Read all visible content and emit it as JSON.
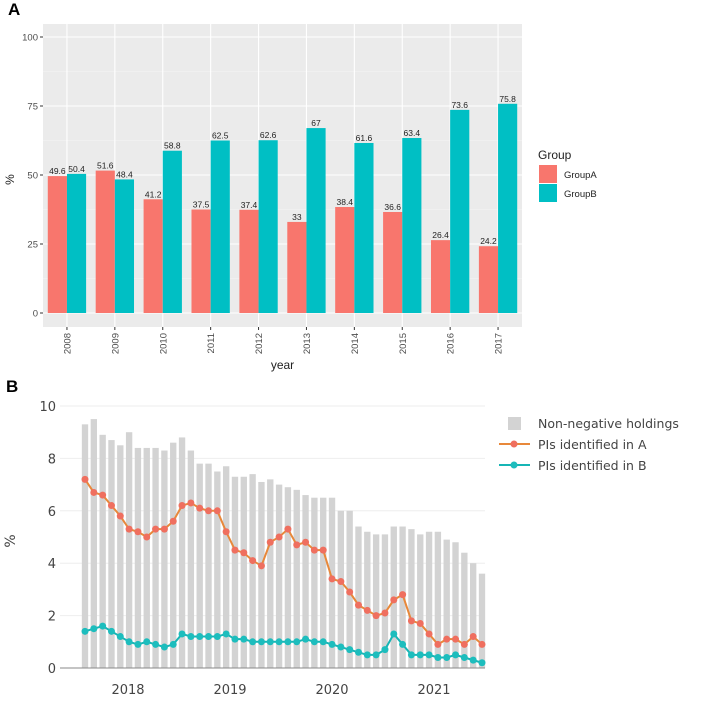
{
  "panels": {
    "a_label": "A",
    "b_label": "B"
  },
  "chart_data": [
    {
      "type": "bar",
      "panel": "A",
      "title": "",
      "xlabel": "year",
      "ylabel": "%",
      "ylim": [
        0,
        100
      ],
      "yticks": [
        0,
        25,
        50,
        75,
        100
      ],
      "ytick_labels": [
        "0",
        "25",
        "50",
        "75",
        "100"
      ],
      "grid": true,
      "categories": [
        "2008",
        "2009",
        "2010",
        "2011",
        "2012",
        "2013",
        "2014",
        "2015",
        "2016",
        "2017"
      ],
      "series": [
        {
          "name": "GroupA",
          "color": "#F8766D",
          "values": [
            49.6,
            51.6,
            41.2,
            37.5,
            37.4,
            33,
            38.4,
            36.6,
            26.4,
            24.2
          ],
          "labels": [
            "49.6",
            "51.6",
            "41.2",
            "37.5",
            "37.4",
            "33",
            "38.4",
            "36.6",
            "26.4",
            "24.2"
          ]
        },
        {
          "name": "GroupB",
          "color": "#00BFC4",
          "values": [
            50.4,
            48.4,
            58.8,
            62.5,
            62.6,
            67,
            61.6,
            63.4,
            73.6,
            75.8
          ],
          "labels": [
            "50.4",
            "48.4",
            "58.8",
            "62.5",
            "62.6",
            "67",
            "61.6",
            "63.4",
            "73.6",
            "75.8"
          ]
        }
      ],
      "legend": {
        "title": "Group",
        "position": "right",
        "items": [
          "GroupA",
          "GroupB"
        ]
      }
    },
    {
      "type": "bar+line",
      "panel": "B",
      "title": "",
      "xlabel": "",
      "ylabel": "%",
      "ylim": [
        0,
        10
      ],
      "yticks": [
        0,
        2,
        4,
        6,
        8,
        10
      ],
      "ytick_labels": [
        "0",
        "2",
        "4",
        "6",
        "8",
        "10"
      ],
      "xtick_labels": [
        "2018",
        "2019",
        "2020",
        "2021"
      ],
      "grid": true,
      "legend": {
        "position": "top-right",
        "items": [
          "Non-negative holdings",
          "PIs identified in A",
          "PIs identified in B"
        ]
      },
      "series": [
        {
          "name": "Non-negative holdings",
          "kind": "bar",
          "color": "#D3D3D3",
          "values": [
            9.3,
            9.5,
            8.9,
            8.7,
            8.5,
            9.0,
            8.4,
            8.4,
            8.4,
            8.3,
            8.6,
            8.8,
            8.3,
            7.8,
            7.8,
            7.5,
            7.7,
            7.3,
            7.3,
            7.4,
            7.1,
            7.2,
            7.0,
            6.9,
            6.8,
            6.6,
            6.5,
            6.5,
            6.5,
            6.0,
            6.0,
            5.4,
            5.2,
            5.1,
            5.1,
            5.4,
            5.4,
            5.3,
            5.1,
            5.2,
            5.2,
            4.9,
            4.8,
            4.4,
            4.0,
            3.6
          ]
        },
        {
          "name": "PIs identified in A",
          "kind": "line",
          "color": "#E8883A",
          "marker_color": "#EF6F5F",
          "values": [
            7.2,
            6.7,
            6.6,
            6.2,
            5.8,
            5.3,
            5.2,
            5.0,
            5.3,
            5.3,
            5.6,
            6.2,
            6.3,
            6.1,
            6.0,
            6.0,
            5.2,
            4.5,
            4.4,
            4.1,
            3.9,
            4.8,
            5.0,
            5.3,
            4.7,
            4.8,
            4.5,
            4.5,
            3.4,
            3.3,
            2.9,
            2.4,
            2.2,
            2.0,
            2.1,
            2.6,
            2.8,
            1.8,
            1.7,
            1.3,
            0.9,
            1.1,
            1.1,
            0.9,
            1.2,
            0.9
          ]
        },
        {
          "name": "PIs identified in B",
          "kind": "line",
          "color": "#17B5B5",
          "marker_color": "#1DBDBD",
          "values": [
            1.4,
            1.5,
            1.6,
            1.4,
            1.2,
            1.0,
            0.9,
            1.0,
            0.9,
            0.8,
            0.9,
            1.3,
            1.2,
            1.2,
            1.2,
            1.2,
            1.3,
            1.1,
            1.1,
            1.0,
            1.0,
            1.0,
            1.0,
            1.0,
            1.0,
            1.1,
            1.0,
            1.0,
            0.9,
            0.8,
            0.7,
            0.6,
            0.5,
            0.5,
            0.7,
            1.3,
            0.9,
            0.5,
            0.5,
            0.5,
            0.4,
            0.4,
            0.5,
            0.4,
            0.3,
            0.2
          ]
        }
      ]
    }
  ]
}
